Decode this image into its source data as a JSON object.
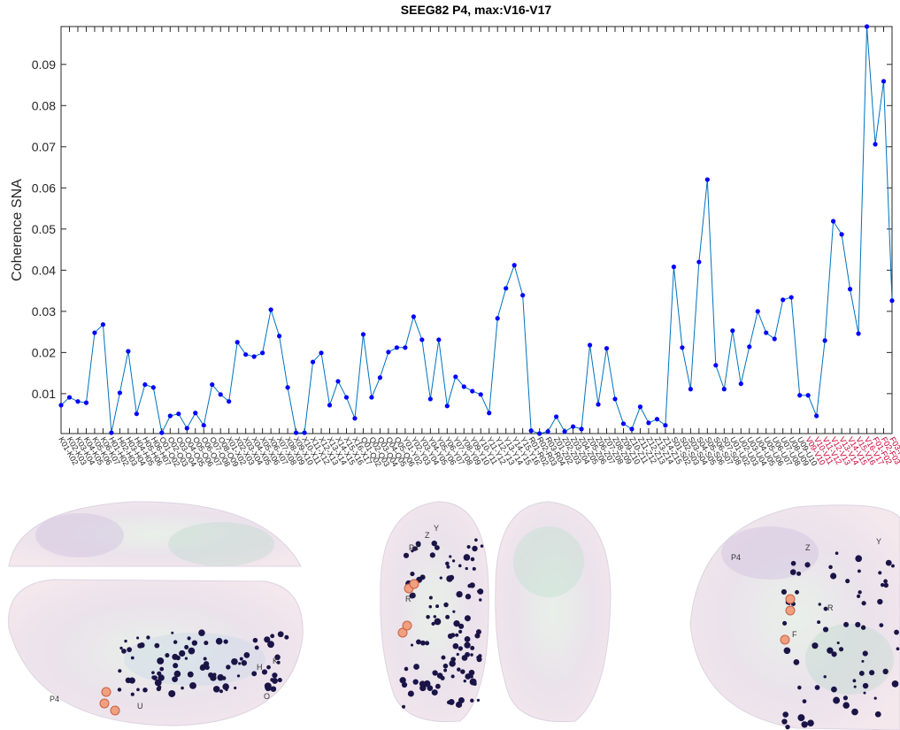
{
  "chart_data": {
    "type": "line",
    "title": "SEEG82 P4, max:V16-V17",
    "y_label": "Coherence SNA",
    "categories": [
      "K01-K02",
      "K02-K03",
      "K03-K04",
      "K04-K05",
      "K05-K06",
      "K06-K07",
      "H01-H02",
      "H02-H03",
      "H03-H04",
      "H04-H05",
      "H05-H06",
      "H06-H07",
      "O01-O02",
      "O02-O03",
      "O03-O04",
      "O04-O05",
      "O05-O06",
      "O06-O07",
      "O07-O08",
      "O08-O09",
      "X01-X02",
      "X02-X03",
      "X03-X04",
      "X04-X05",
      "X05-X06",
      "X06-X07",
      "X07-X08",
      "X08-X09",
      "X09-X10",
      "X10-X11",
      "X11-X12",
      "X12-X13",
      "X13-X14",
      "X14-X15",
      "X15-X16",
      "X16-X17",
      "Q01-Q02",
      "Q02-Q03",
      "Q03-Q04",
      "Q04-Q05",
      "Q05-Q06",
      "Y01-Y02",
      "Y02-Y03",
      "Y03-Y04",
      "Y04-Y05",
      "Y05-Y06",
      "Y06-Y07",
      "Y07-Y08",
      "Y08-Y09",
      "Y09-Y10",
      "Y10-Y11",
      "Y11-Y12",
      "Y12-Y13",
      "Y13-Y14",
      "Y14-Y15",
      "Y15-Y16",
      "R01-R02",
      "R02-R03",
      "R03-R04",
      "Z01-Z02",
      "Z02-Z03",
      "Z03-Z04",
      "Z04-Z05",
      "Z05-Z06",
      "Z06-Z07",
      "Z07-Z08",
      "Z08-Z09",
      "Z09-Z10",
      "Z10-Z11",
      "Z11-Z12",
      "Z12-Z13",
      "Z13-Z14",
      "Z14-Z15",
      "S01-S02",
      "S02-S03",
      "S03-S04",
      "S04-S05",
      "S05-S06",
      "S06-S07",
      "S07-S08",
      "U01-U02",
      "U02-U03",
      "U03-U04",
      "U04-U05",
      "U05-U06",
      "U06-U07",
      "U07-U08",
      "U08-U09",
      "U09-U10",
      "V09-V10",
      "V10-V11",
      "V11-V12",
      "V12-V13",
      "V13-V14",
      "V14-V15",
      "V15-V16",
      "V16-V17",
      "F01-F02",
      "F02-F03",
      "F03-F04"
    ],
    "series": [
      {
        "name": "Coherence SNA",
        "color": "#0072bd",
        "marker_color": "#0000ff",
        "values": [
          0.0072,
          0.0091,
          0.0081,
          0.0078,
          0.0248,
          0.0268,
          0.0005,
          0.0102,
          0.0203,
          0.0051,
          0.0122,
          0.0115,
          0.0005,
          0.0046,
          0.0051,
          0.0016,
          0.0053,
          0.0023,
          0.0122,
          0.0098,
          0.0081,
          0.0225,
          0.0195,
          0.019,
          0.0199,
          0.0304,
          0.024,
          0.0115,
          0.0005,
          0.0005,
          0.0177,
          0.0199,
          0.0072,
          0.013,
          0.0091,
          0.004,
          0.0244,
          0.0091,
          0.0139,
          0.0201,
          0.0212,
          0.0212,
          0.0287,
          0.0231,
          0.0087,
          0.0231,
          0.007,
          0.0141,
          0.0117,
          0.0106,
          0.0098,
          0.0053,
          0.0283,
          0.0356,
          0.0412,
          0.0339,
          0.001,
          0.0003,
          0.0008,
          0.0044,
          0.0008,
          0.002,
          0.0014,
          0.0218,
          0.0074,
          0.021,
          0.0087,
          0.0027,
          0.0014,
          0.0068,
          0.0029,
          0.0038,
          0.0023,
          0.0408,
          0.0212,
          0.0111,
          0.042,
          0.062,
          0.0169,
          0.0111,
          0.0253,
          0.0124,
          0.0214,
          0.03,
          0.0248,
          0.0233,
          0.0328,
          0.0334,
          0.0096,
          0.0096,
          0.0046,
          0.0229,
          0.0519,
          0.0487,
          0.0354,
          0.0246,
          0.0992,
          0.0706,
          0.0859,
          0.0326
        ]
      }
    ],
    "tick_label_colors": [
      "#262626",
      "#262626",
      "#262626",
      "#262626",
      "#262626",
      "#262626",
      "#262626",
      "#262626",
      "#262626",
      "#262626",
      "#262626",
      "#262626",
      "#262626",
      "#262626",
      "#262626",
      "#262626",
      "#262626",
      "#262626",
      "#262626",
      "#262626",
      "#262626",
      "#262626",
      "#262626",
      "#262626",
      "#262626",
      "#262626",
      "#262626",
      "#262626",
      "#262626",
      "#262626",
      "#262626",
      "#262626",
      "#262626",
      "#262626",
      "#262626",
      "#262626",
      "#262626",
      "#262626",
      "#262626",
      "#262626",
      "#262626",
      "#262626",
      "#262626",
      "#262626",
      "#262626",
      "#262626",
      "#262626",
      "#262626",
      "#262626",
      "#262626",
      "#262626",
      "#262626",
      "#262626",
      "#262626",
      "#262626",
      "#262626",
      "#262626",
      "#262626",
      "#262626",
      "#262626",
      "#262626",
      "#262626",
      "#262626",
      "#262626",
      "#262626",
      "#262626",
      "#262626",
      "#262626",
      "#262626",
      "#262626",
      "#262626",
      "#262626",
      "#262626",
      "#262626",
      "#262626",
      "#262626",
      "#262626",
      "#262626",
      "#262626",
      "#262626",
      "#262626",
      "#262626",
      "#262626",
      "#262626",
      "#262626",
      "#262626",
      "#262626",
      "#262626",
      "#262626",
      "#cc0033",
      "#cc0033",
      "#cc0033",
      "#cc0033",
      "#cc0033",
      "#cc0033",
      "#cc0033",
      "#cc0033",
      "#cc0033",
      "#cc0033",
      "#cc0033"
    ],
    "ylim": [
      0.0003,
      0.0992
    ],
    "yticks": [
      0.01,
      0.02,
      0.03,
      0.04,
      0.05,
      0.06,
      0.07,
      0.08,
      0.09
    ],
    "grid": false
  },
  "brain_views": [
    {
      "labels": [
        "P4",
        "U",
        "O",
        "H",
        "K"
      ]
    },
    {
      "labels": [
        "P4",
        "Z",
        "Y",
        "R"
      ]
    },
    {
      "labels": [
        "P4",
        "Z",
        "Y",
        "R",
        "F"
      ]
    }
  ]
}
